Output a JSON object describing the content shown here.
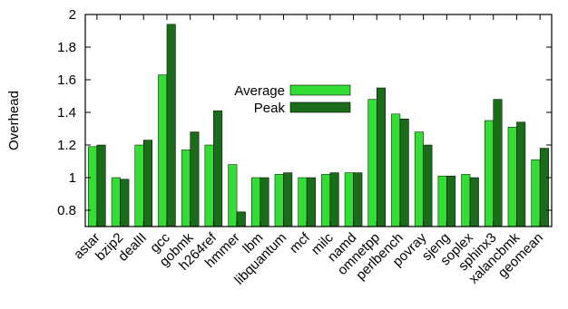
{
  "chart_data": {
    "type": "bar",
    "title": "",
    "xlabel": "",
    "ylabel": "Overhead",
    "ylim": [
      0.7,
      2.0
    ],
    "yticks": [
      "0.8",
      "1",
      "1.2",
      "1.4",
      "1.6",
      "1.8",
      "2"
    ],
    "grid": false,
    "legend_position": "center",
    "categories": [
      "astar",
      "bzip2",
      "dealII",
      "gcc",
      "gobmk",
      "h264ref",
      "hmmer",
      "lbm",
      "libquantum",
      "mcf",
      "milc",
      "namd",
      "omnetpp",
      "perlbench",
      "povray",
      "sjeng",
      "soplex",
      "sphinx3",
      "xalancbmk",
      "geomean"
    ],
    "series": [
      {
        "name": "Average",
        "color": "#33dd33",
        "values": [
          1.19,
          1.0,
          1.2,
          1.63,
          1.17,
          1.2,
          1.08,
          1.0,
          1.02,
          1.0,
          1.02,
          1.03,
          1.48,
          1.39,
          1.28,
          1.01,
          1.02,
          1.35,
          1.31,
          1.11
        ]
      },
      {
        "name": "Peak",
        "color": "#1a6b1a",
        "values": [
          1.2,
          0.99,
          1.23,
          1.94,
          1.28,
          1.41,
          0.79,
          1.0,
          1.03,
          1.0,
          1.03,
          1.03,
          1.55,
          1.36,
          1.2,
          1.01,
          1.0,
          1.48,
          1.34,
          1.18
        ]
      }
    ]
  }
}
